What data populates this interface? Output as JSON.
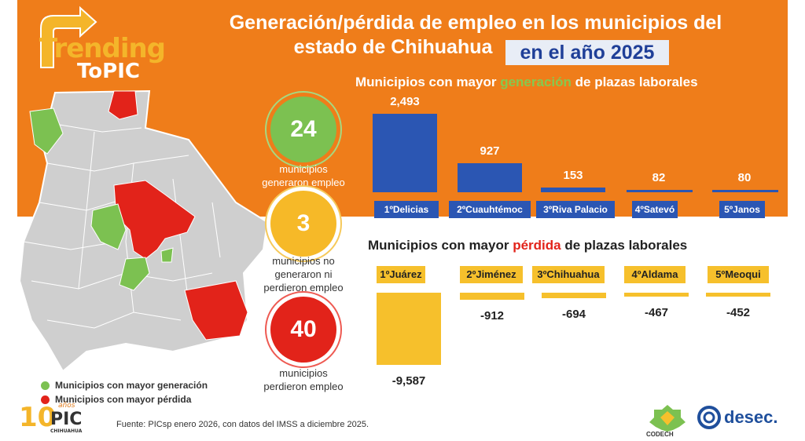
{
  "header": {
    "title_line1": "Generación/pérdida de empleo en los municipios del",
    "title_line2": "estado de Chihuahua",
    "title_year": "en el año 2025"
  },
  "logo": {
    "line1": "Trending",
    "line2": "ToPIC"
  },
  "stats": [
    {
      "value": "24",
      "caption_line1": "municipios",
      "caption_line2": "generaron empleo",
      "caption_line3": ""
    },
    {
      "value": "3",
      "caption_line1": "municipios no",
      "caption_line2": "generaron ni",
      "caption_line3": "perdieron empleo"
    },
    {
      "value": "40",
      "caption_line1": "municipios",
      "caption_line2": "perdieron empleo",
      "caption_line3": ""
    }
  ],
  "legend": {
    "generation": "Municipios con mayor generación",
    "loss": "Municipios con mayor pérdida"
  },
  "source": "Fuente: PICsp enero 2026, con datos del IMSS a diciembre 2025.",
  "footer": {
    "badge": "10",
    "badge_word": "años",
    "badge_pic": "PIC",
    "badge_city": "CHIHUAHUA",
    "codech": "CODECH",
    "desec": "desec."
  },
  "colors": {
    "orange": "#ef7d1a",
    "blue": "#2b56b3",
    "yellow": "#f6c02c",
    "green": "#7cc151",
    "red": "#e2231a"
  },
  "chart_data": [
    {
      "type": "bar",
      "title_pre": "Municipios con mayor ",
      "title_highlight": "generación",
      "title_post": " de plazas laborales",
      "categories": [
        "1ºDelicias",
        "2ºCuauhtémoc",
        "3ºRiva Palacio",
        "4ºSatevó",
        "5ºJanos"
      ],
      "values": [
        2493,
        927,
        153,
        82,
        80
      ],
      "value_labels": [
        "2,493",
        "927",
        "153",
        "82",
        "80"
      ],
      "ylim": [
        0,
        2493
      ]
    },
    {
      "type": "bar",
      "title_pre": "Municipios con mayor ",
      "title_highlight": "pérdida",
      "title_post": " de plazas laborales",
      "categories": [
        "1ºJuárez",
        "2ºJiménez",
        "3ºChihuahua",
        "4ºAldama",
        "5ºMeoqui"
      ],
      "values": [
        -9587,
        -912,
        -694,
        -467,
        -452
      ],
      "value_labels": [
        "-9,587",
        "-912",
        "-694",
        "-467",
        "-452"
      ],
      "ylim": [
        -9587,
        0
      ]
    }
  ]
}
